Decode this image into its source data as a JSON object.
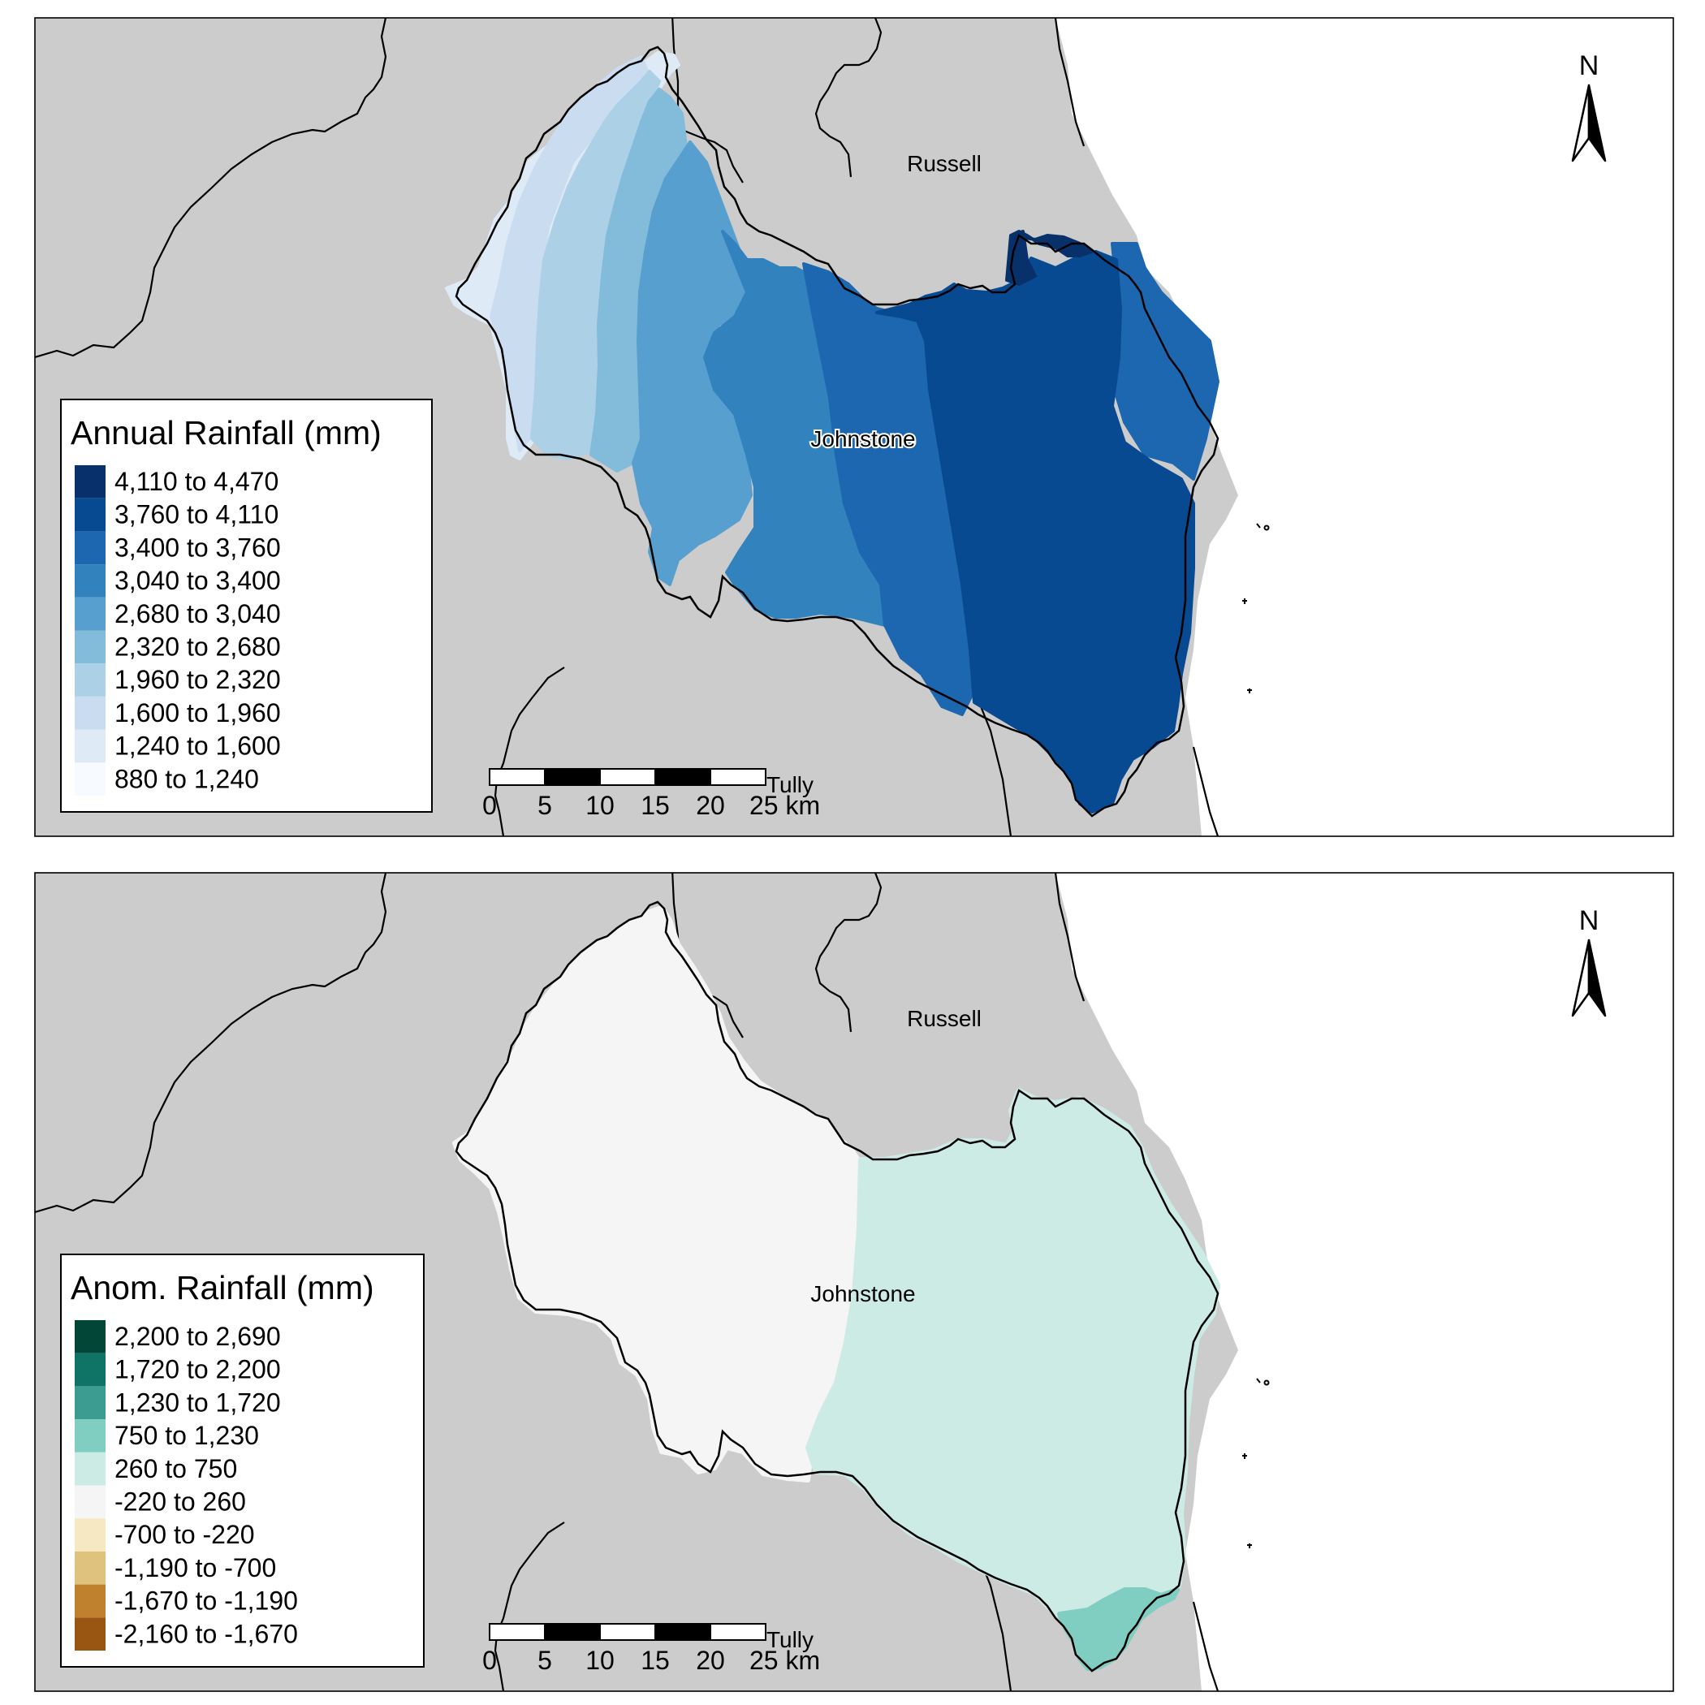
{
  "maps": [
    {
      "id": "annual",
      "legend": {
        "title": "Annual Rainfall (mm)",
        "classes": [
          {
            "label": "4,110 to 4,470",
            "color": "#08306b"
          },
          {
            "label": "3,760 to 4,110",
            "color": "#084a91"
          },
          {
            "label": "3,400 to 3,760",
            "color": "#1c67af"
          },
          {
            "label": "3,040 to 3,400",
            "color": "#3282bd"
          },
          {
            "label": "2,680 to 3,040",
            "color": "#579fce"
          },
          {
            "label": "2,320 to 2,680",
            "color": "#83bbdb"
          },
          {
            "label": "1,960 to 2,320",
            "color": "#acd0e6"
          },
          {
            "label": "1,600 to 1,960",
            "color": "#c9dcf0"
          },
          {
            "label": "1,240 to 1,600",
            "color": "#deebf7"
          },
          {
            "label": "880 to 1,240",
            "color": "#f7fbff"
          }
        ]
      }
    },
    {
      "id": "anomaly",
      "legend": {
        "title": "Anom. Rainfall (mm)",
        "classes": [
          {
            "label": "2,200 to 2,690",
            "color": "#014636"
          },
          {
            "label": "1,720 to 2,200",
            "color": "#0f7466"
          },
          {
            "label": "1,230 to 1,720",
            "color": "#3c9c92"
          },
          {
            "label": "750 to 1,230",
            "color": "#80cdc1"
          },
          {
            "label": "260 to 750",
            "color": "#cdebe5"
          },
          {
            "label": "-220 to 260",
            "color": "#f5f5f5"
          },
          {
            "label": "-700 to -220",
            "color": "#f6e8c3"
          },
          {
            "label": "-1,190 to -700",
            "color": "#dfc27d"
          },
          {
            "label": "-1,670 to -1,190",
            "color": "#bf812d"
          },
          {
            "label": "-2,160 to -1,670",
            "color": "#995613"
          }
        ]
      }
    }
  ],
  "places": {
    "north": "Russell",
    "center": "Johnstone",
    "south": "Tully"
  },
  "north_arrow": {
    "label": "N"
  },
  "scale_bar": {
    "ticks": [
      "0",
      "5",
      "10",
      "15",
      "20",
      "25 km"
    ]
  },
  "colors": {
    "land": "#cccccc",
    "sea": "#ffffff",
    "border": "#000000"
  }
}
